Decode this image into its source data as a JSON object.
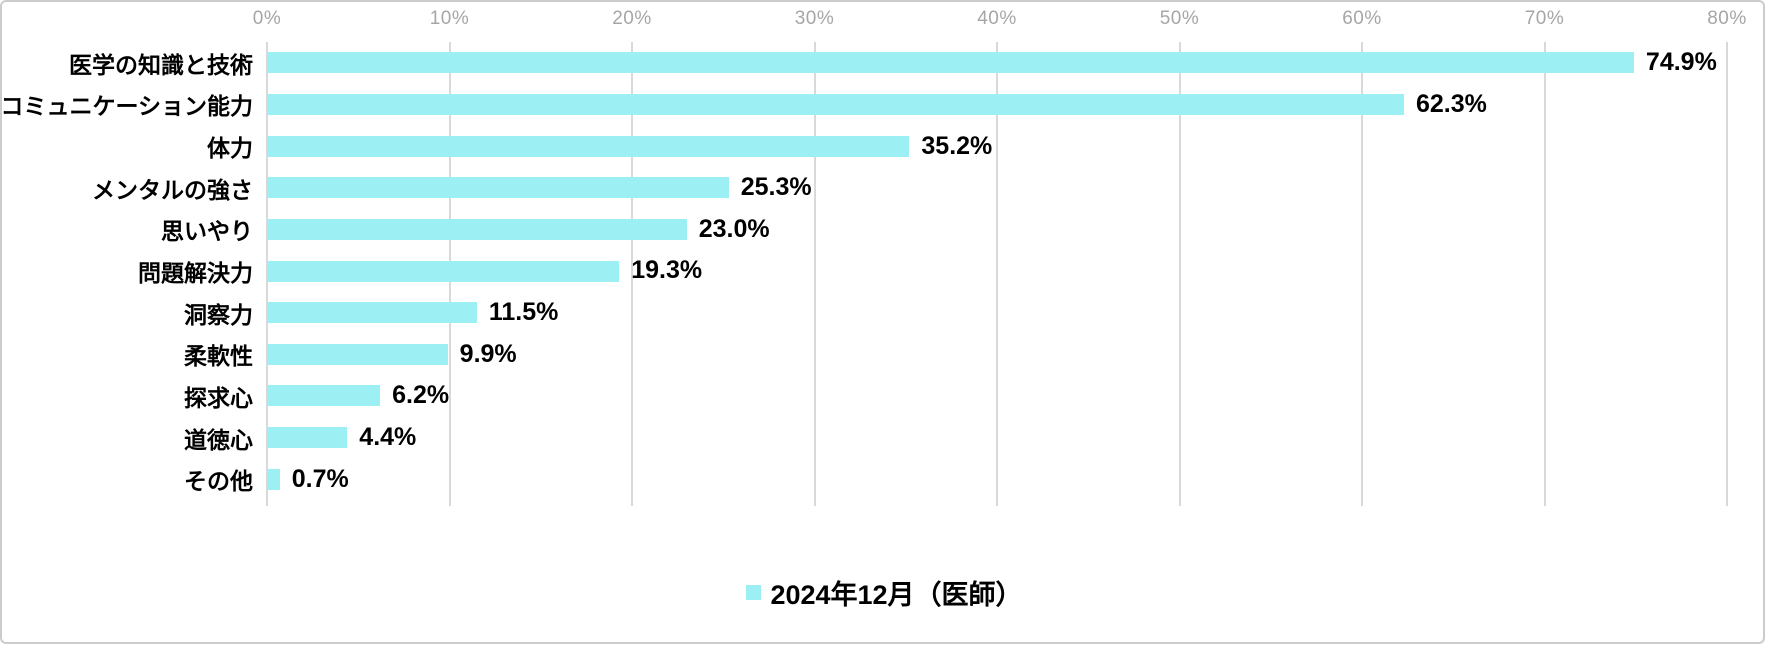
{
  "chart_data": {
    "type": "bar",
    "orientation": "horizontal",
    "title": "",
    "xlabel": "",
    "ylabel": "",
    "categories": [
      "医学の知識と技術",
      "コミュニケーション能力",
      "体力",
      "メンタルの強さ",
      "思いやり",
      "問題解決力",
      "洞察力",
      "柔軟性",
      "探求心",
      "道徳心",
      "その他"
    ],
    "values": [
      74.9,
      62.3,
      35.2,
      25.3,
      23.0,
      19.3,
      11.5,
      9.9,
      6.2,
      4.4,
      0.7
    ],
    "value_labels": [
      "74.9%",
      "62.3%",
      "35.2%",
      "25.3%",
      "23.0%",
      "19.3%",
      "11.5%",
      "9.9%",
      "6.2%",
      "4.4%",
      "0.7%"
    ],
    "x_ticks": [
      "0%",
      "10%",
      "20%",
      "30%",
      "40%",
      "50%",
      "60%",
      "70%",
      "80%"
    ],
    "xlim": [
      0,
      80
    ],
    "grid": true,
    "legend_position": "bottom",
    "series": [
      {
        "name": "2024年12月（医師）",
        "color": "#9ceff2"
      }
    ],
    "colors": {
      "bar": "#9ceff2",
      "gridline": "#d9d9d9",
      "tick_text": "#a6a6a6",
      "label_text": "#000000",
      "background": "#ffffff",
      "frame_border": "#cccccc"
    }
  },
  "legend": {
    "label": "2024年12月（医師）"
  }
}
